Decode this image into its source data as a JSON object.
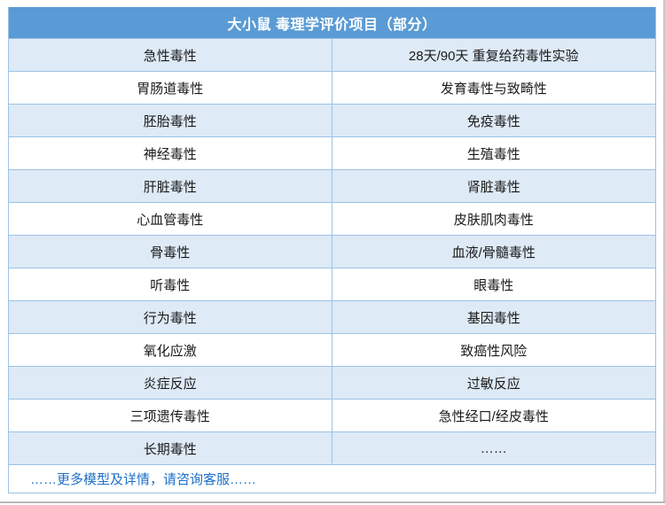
{
  "page": {
    "title": "大小鼠 毒理学评价项目（部分）",
    "footer_note": "……更多模型及详情，请咨询客服……"
  },
  "table": {
    "rows": [
      {
        "left": "急性毒性",
        "right": "28天/90天 重复给药毒性实验"
      },
      {
        "left": "胃肠道毒性",
        "right": "发育毒性与致畸性"
      },
      {
        "left": "胚胎毒性",
        "right": "免疫毒性"
      },
      {
        "left": "神经毒性",
        "right": "生殖毒性"
      },
      {
        "left": "肝脏毒性",
        "right": "肾脏毒性"
      },
      {
        "left": "心血管毒性",
        "right": "皮肤肌肉毒性"
      },
      {
        "left": "骨毒性",
        "right": "血液/骨髓毒性"
      },
      {
        "left": "听毒性",
        "right": "眼毒性"
      },
      {
        "left": "行为毒性",
        "right": "基因毒性"
      },
      {
        "left": "氧化应激",
        "right": "致癌性风险"
      },
      {
        "left": "炎症反应",
        "right": "过敏反应"
      },
      {
        "left": "三项遗传毒性",
        "right": "急性经口/经皮毒性"
      },
      {
        "left": "长期毒性",
        "right": "……"
      }
    ]
  },
  "colors": {
    "header_bg": "#5B9BD5",
    "row_bg": "#FFFFFF",
    "row_alt_bg": "#DEEAF6",
    "border": "#9CC2E5",
    "body_text": "#1A1A1A",
    "footer_text": "#1E6FC8"
  }
}
